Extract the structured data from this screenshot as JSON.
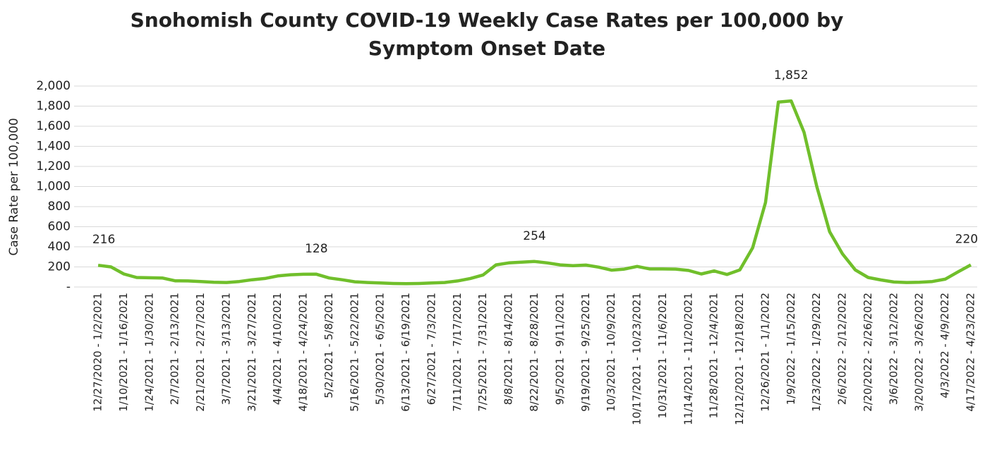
{
  "chart_data": {
    "type": "line",
    "title": [
      "Snohomish County COVID-19 Weekly Case Rates per 100,000 by",
      "Symptom Onset Date"
    ],
    "y_label": "Case Rate per 100,000",
    "categories": [
      "12/27/2020 - 1/2/2021",
      null,
      "1/10/2021 - 1/16/2021",
      null,
      "1/24/2021 - 1/30/2021",
      null,
      "2/7/2021 - 2/13/2021",
      null,
      "2/21/2021 - 2/27/2021",
      null,
      "3/7/2021 - 3/13/2021",
      null,
      "3/21/2021 - 3/27/2021",
      null,
      "4/4/2021 - 4/10/2021",
      null,
      "4/18/2021 - 4/24/2021",
      null,
      "5/2/2021 - 5/8/2021",
      null,
      "5/16/2021 - 5/22/2021",
      null,
      "5/30/2021 - 6/5/2021",
      null,
      "6/13/2021 - 6/19/2021",
      null,
      "6/27/2021 - 7/3/2021",
      null,
      "7/11/2021 - 7/17/2021",
      null,
      "7/25/2021 - 7/31/2021",
      null,
      "8/8/2021 - 8/14/2021",
      null,
      "8/22/2021 - 8/28/2021",
      null,
      "9/5/2021 - 9/11/2021",
      null,
      "9/19/2021 - 9/25/2021",
      null,
      "10/3/2021 - 10/9/2021",
      null,
      "10/17/2021 - 10/23/2021",
      null,
      "10/31/2021 - 11/6/2021",
      null,
      "11/14/2021 - 11/20/2021",
      null,
      "11/28/2021 - 12/4/2021",
      null,
      "12/12/2021 - 12/18/2021",
      null,
      "12/26/2021 - 1/1/2022",
      null,
      "1/9/2022 - 1/15/2022",
      null,
      "1/23/2022 - 1/29/2022",
      null,
      "2/6/2022 - 2/12/2022",
      null,
      "2/20/2022 - 2/26/2022",
      null,
      "3/6/2022 - 3/12/2022",
      null,
      "3/20/2022 - 3/26/2022",
      null,
      "4/3/2022 - 4/9/2022",
      null,
      "4/17/2022 - 4/23/2022"
    ],
    "values": [
      216,
      200,
      130,
      95,
      92,
      90,
      62,
      60,
      55,
      48,
      45,
      55,
      72,
      85,
      110,
      122,
      127,
      128,
      90,
      72,
      52,
      45,
      40,
      35,
      33,
      35,
      40,
      45,
      60,
      85,
      120,
      220,
      240,
      248,
      254,
      240,
      220,
      212,
      218,
      198,
      168,
      178,
      205,
      180,
      180,
      178,
      165,
      130,
      160,
      125,
      170,
      390,
      840,
      1840,
      1852,
      1540,
      1000,
      550,
      330,
      170,
      95,
      70,
      50,
      45,
      48,
      55,
      78,
      150,
      220
    ],
    "value_labels": [
      "216",
      null,
      null,
      null,
      null,
      null,
      null,
      null,
      null,
      null,
      null,
      null,
      null,
      null,
      null,
      null,
      null,
      "128",
      null,
      null,
      null,
      null,
      null,
      null,
      null,
      null,
      null,
      null,
      null,
      null,
      null,
      null,
      null,
      null,
      "254",
      null,
      null,
      null,
      null,
      null,
      null,
      null,
      null,
      null,
      null,
      null,
      null,
      null,
      null,
      null,
      null,
      null,
      null,
      null,
      "1,852",
      null,
      null,
      null,
      null,
      null,
      null,
      null,
      null,
      null,
      null,
      null,
      null,
      null,
      "220"
    ],
    "color": "#70bf2b",
    "ylim": [
      0,
      2000
    ],
    "yticks": [
      {
        "value": 0,
        "label": "-"
      },
      200,
      400,
      600,
      800,
      {
        "value": 1000,
        "label": "1,000"
      },
      {
        "value": 1200,
        "label": "1,200"
      },
      {
        "value": 1400,
        "label": "1,400"
      },
      {
        "value": 1600,
        "label": "1,600"
      },
      {
        "value": 1800,
        "label": "1,800"
      },
      {
        "value": 2000,
        "label": "2,000"
      }
    ],
    "grid": true
  }
}
